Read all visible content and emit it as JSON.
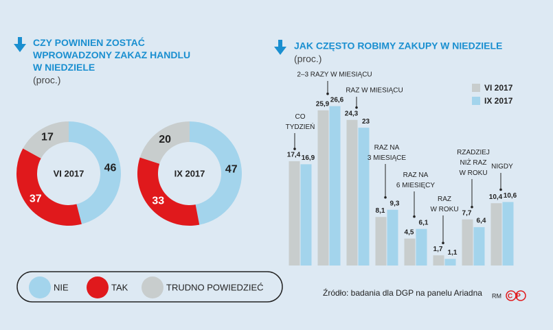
{
  "chart_data": [
    {
      "type": "pie",
      "title": "CZY POWINIEN ZOSTAĆ\nWPROWADZONY ZAKAZ HANDLU\nW NIEDZIELE",
      "subtitle": "(proc.)",
      "center_label": "VI 2017",
      "categories": [
        "NIE",
        "TAK",
        "TRUDNO POWIEDZIEĆ"
      ],
      "values": [
        46,
        37,
        17
      ],
      "colors": [
        "#a3d4ec",
        "#e0191c",
        "#c8cdcd"
      ]
    },
    {
      "type": "pie",
      "center_label": "IX 2017",
      "values": [
        47,
        33,
        20
      ],
      "colors": [
        "#a3d4ec",
        "#e0191c",
        "#c8cdcd"
      ]
    },
    {
      "type": "bar",
      "title": "JAK CZĘSTO ROBIMY ZAKUPY W NIEDZIELE",
      "subtitle": "(proc.)",
      "categories": [
        "CO\nTYDZIEŃ",
        "2–3 RAZY W MIESIĄCU",
        "RAZ W MIESIĄCU",
        "RAZ NA\n3 MIESIĄCE",
        "RAZ NA\n6 MIESIĘCY",
        "RAZ\nW ROKU",
        "RZADZIEJ\nNIŻ RAZ\nW ROKU",
        "NIGDY"
      ],
      "series": [
        {
          "name": "VI 2017",
          "color": "#c8cdcd",
          "values": [
            17.4,
            25.9,
            24.3,
            8.1,
            4.5,
            1.7,
            7.7,
            10.4
          ],
          "value_labels": [
            "17,4",
            "25,9",
            "24,3",
            "8,1",
            "4,5",
            "1,7",
            "7,7",
            "10,4"
          ]
        },
        {
          "name": "IX 2017",
          "color": "#a3d4ec",
          "values": [
            16.9,
            26.6,
            23,
            9.3,
            6.1,
            1.1,
            6.4,
            10.6
          ],
          "value_labels": [
            "16,9",
            "26,6",
            "23",
            "9,3",
            "6,1",
            "1,1",
            "6,4",
            "10,6"
          ]
        }
      ],
      "ylim": [
        0,
        30
      ],
      "source": "Źródło: badania dla DGP na panelu Ariadna",
      "credit": "RM",
      "logo": "CP"
    }
  ]
}
